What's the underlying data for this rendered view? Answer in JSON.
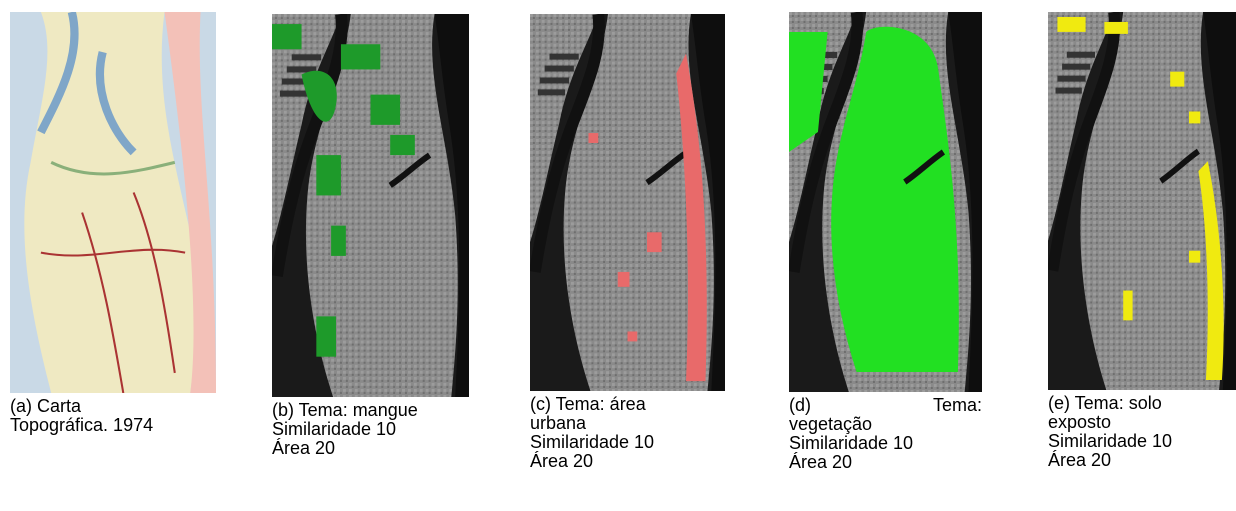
{
  "panels": [
    {
      "caption": [
        "(a) Carta",
        "Topográfica. 1974"
      ]
    },
    {
      "caption": [
        "(b) Tema: mangue",
        "Similaridade 10",
        "Área 20"
      ]
    },
    {
      "caption": [
        "(c) Tema: área",
        "urbana",
        "Similaridade 10",
        "Área 20"
      ]
    },
    {
      "caption": [
        "(d) Tema:",
        "vegetação",
        "Similaridade 10",
        "Área 20"
      ]
    },
    {
      "caption": [
        "(e) Tema: solo",
        "exposto",
        "Similaridade 10",
        "Área 20"
      ]
    }
  ]
}
